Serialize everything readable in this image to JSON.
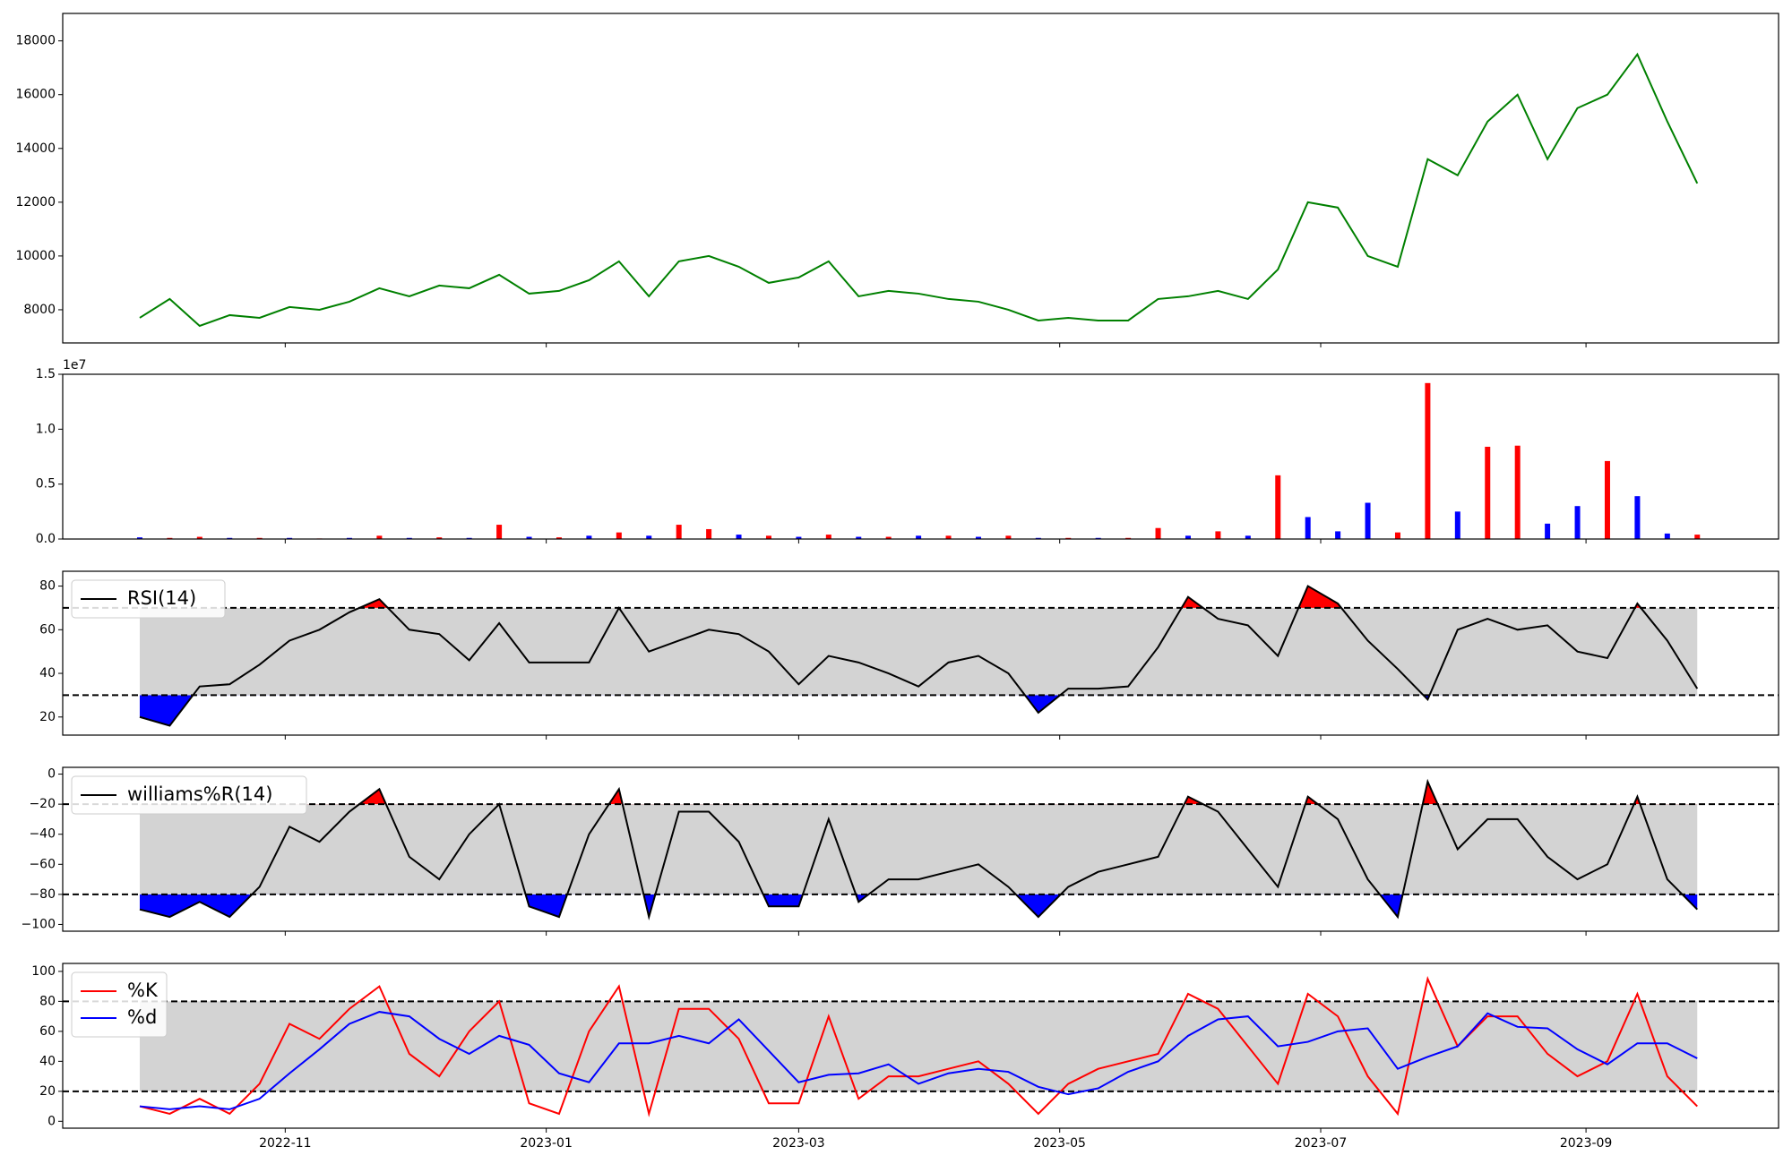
{
  "chart_data": [
    {
      "type": "line",
      "x": [
        19263,
        19270,
        19277,
        19284,
        19291,
        19298,
        19305,
        19312,
        19319,
        19326,
        19333,
        19340,
        19347,
        19354,
        19361,
        19368,
        19375,
        19382,
        19389,
        19396,
        19403,
        19410,
        19417,
        19424,
        19431,
        19438,
        19445,
        19452,
        19459,
        19466,
        19473,
        19480,
        19487,
        19494,
        19501,
        19508,
        19515,
        19522,
        19529,
        19536,
        19543,
        19550,
        19557,
        19564,
        19571,
        19578,
        19585,
        19592,
        19599,
        19606,
        19613,
        19620,
        19627
      ],
      "xlim": [
        19245,
        19646
      ],
      "ylim": [
        6766,
        19021
      ],
      "yticks": [
        8000,
        10000,
        12000,
        14000,
        16000,
        18000
      ],
      "series": [
        {
          "color": "green",
          "values": [
            7700,
            8400,
            7400,
            7800,
            7700,
            8100,
            8000,
            8300,
            8800,
            8500,
            8900,
            8800,
            9300,
            8600,
            8700,
            9100,
            9800,
            8500,
            9800,
            10000,
            9600,
            9000,
            9200,
            9800,
            8500,
            8700,
            8600,
            8400,
            8300,
            8000,
            7600,
            7700,
            7600,
            7600,
            8400,
            8500,
            8700,
            8400,
            9500,
            12000,
            11800,
            10000,
            9600,
            13600,
            13000,
            15000,
            16000,
            13600,
            15500,
            16000,
            17500,
            15000,
            12700
          ]
        }
      ]
    },
    {
      "type": "bar",
      "x": [
        19263,
        19270,
        19277,
        19284,
        19291,
        19298,
        19305,
        19312,
        19319,
        19326,
        19333,
        19340,
        19347,
        19354,
        19361,
        19368,
        19375,
        19382,
        19389,
        19396,
        19403,
        19410,
        19417,
        19424,
        19431,
        19438,
        19445,
        19452,
        19459,
        19466,
        19473,
        19480,
        19487,
        19494,
        19501,
        19508,
        19515,
        19522,
        19529,
        19536,
        19543,
        19550,
        19557,
        19564,
        19571,
        19578,
        19585,
        19592,
        19599,
        19606,
        19613,
        19620,
        19627
      ],
      "xlim": [
        19245,
        19646
      ],
      "ylim": [
        0,
        15000000
      ],
      "y_offset_label": "1e7",
      "yticks": [
        {
          "value": 0,
          "label": "0.0"
        },
        {
          "value": 5000000,
          "label": "0.5"
        },
        {
          "value": 10000000,
          "label": "1.0"
        },
        {
          "value": 15000000,
          "label": "1.5"
        }
      ],
      "values": [
        150000,
        100000,
        200000,
        100000,
        100000,
        100000,
        50000,
        100000,
        300000,
        100000,
        150000,
        100000,
        1300000,
        200000,
        150000,
        300000,
        600000,
        300000,
        1300000,
        900000,
        400000,
        300000,
        200000,
        400000,
        200000,
        200000,
        300000,
        300000,
        200000,
        300000,
        100000,
        100000,
        100000,
        100000,
        1000000,
        300000,
        700000,
        300000,
        5800000,
        2000000,
        700000,
        3300000,
        600000,
        14200000,
        2500000,
        8400000,
        8500000,
        1400000,
        3000000,
        7100000,
        3900000,
        500000,
        400000
      ],
      "colors": [
        "blue",
        "red",
        "red",
        "blue",
        "red",
        "blue",
        "red",
        "blue",
        "red",
        "blue",
        "red",
        "blue",
        "red",
        "blue",
        "red",
        "blue",
        "red",
        "blue",
        "red",
        "red",
        "blue",
        "red",
        "blue",
        "red",
        "blue",
        "red",
        "blue",
        "red",
        "blue",
        "red",
        "blue",
        "red",
        "blue",
        "red",
        "red",
        "blue",
        "red",
        "blue",
        "red",
        "blue",
        "blue",
        "blue",
        "red",
        "red",
        "blue",
        "red",
        "red",
        "blue",
        "blue",
        "red",
        "blue",
        "blue",
        "red"
      ]
    },
    {
      "type": "oscillator",
      "x": [
        19263,
        19270,
        19277,
        19284,
        19291,
        19298,
        19305,
        19312,
        19319,
        19326,
        19333,
        19340,
        19347,
        19354,
        19361,
        19368,
        19375,
        19382,
        19389,
        19396,
        19403,
        19410,
        19417,
        19424,
        19431,
        19438,
        19445,
        19452,
        19459,
        19466,
        19473,
        19480,
        19487,
        19494,
        19501,
        19508,
        19515,
        19522,
        19529,
        19536,
        19543,
        19550,
        19557,
        19564,
        19571,
        19578,
        19585,
        19592,
        19599,
        19606,
        19613,
        19620,
        19627
      ],
      "xlim": [
        19245,
        19646
      ],
      "ylim": [
        11.7,
        86.8
      ],
      "yticks": [
        20,
        40,
        60,
        80
      ],
      "bands": [
        30,
        70
      ],
      "band_color": "lightgray",
      "overbought_color": "red",
      "oversold_color": "blue",
      "legend": "upper left",
      "series": [
        {
          "name": "RSI(14)",
          "color": "black",
          "values": [
            20,
            16,
            34,
            35,
            44,
            55,
            60,
            68,
            74,
            60,
            58,
            46,
            63,
            45,
            45,
            45,
            70,
            50,
            55,
            60,
            58,
            50,
            35,
            48,
            45,
            40,
            34,
            45,
            48,
            40,
            22,
            33,
            33,
            34,
            52,
            75,
            65,
            62,
            48,
            80,
            72,
            55,
            42,
            28,
            60,
            65,
            60,
            62,
            50,
            47,
            72,
            55,
            33
          ]
        }
      ]
    },
    {
      "type": "oscillator",
      "x": [
        19263,
        19270,
        19277,
        19284,
        19291,
        19298,
        19305,
        19312,
        19319,
        19326,
        19333,
        19340,
        19347,
        19354,
        19361,
        19368,
        19375,
        19382,
        19389,
        19396,
        19403,
        19410,
        19417,
        19424,
        19431,
        19438,
        19445,
        19452,
        19459,
        19466,
        19473,
        19480,
        19487,
        19494,
        19501,
        19508,
        19515,
        19522,
        19529,
        19536,
        19543,
        19550,
        19557,
        19564,
        19571,
        19578,
        19585,
        19592,
        19599,
        19606,
        19613,
        19620,
        19627
      ],
      "xlim": [
        19245,
        19646
      ],
      "ylim": [
        -104.5,
        4.5
      ],
      "yticks": [
        {
          "value": -100,
          "label": "−100"
        },
        {
          "value": -80,
          "label": "−80"
        },
        {
          "value": -60,
          "label": "−60"
        },
        {
          "value": -40,
          "label": "−40"
        },
        {
          "value": -20,
          "label": "−20"
        },
        0
      ],
      "bands": [
        -80,
        -20
      ],
      "band_color": "lightgray",
      "overbought_color": "red",
      "oversold_color": "blue",
      "legend": "upper left",
      "series": [
        {
          "name": "williams%R(14)",
          "color": "black",
          "values": [
            -90,
            -95,
            -85,
            -95,
            -75,
            -35,
            -45,
            -25,
            -10,
            -55,
            -70,
            -40,
            -20,
            -88,
            -95,
            -40,
            -10,
            -95,
            -25,
            -25,
            -45,
            -88,
            -88,
            -30,
            -85,
            -70,
            -70,
            -65,
            -60,
            -75,
            -95,
            -75,
            -65,
            -60,
            -55,
            -15,
            -25,
            -50,
            -75,
            -15,
            -30,
            -70,
            -95,
            -5,
            -50,
            -30,
            -30,
            -55,
            -70,
            -60,
            -15,
            -70,
            -90
          ]
        }
      ]
    },
    {
      "type": "oscillator",
      "x": [
        19263,
        19270,
        19277,
        19284,
        19291,
        19298,
        19305,
        19312,
        19319,
        19326,
        19333,
        19340,
        19347,
        19354,
        19361,
        19368,
        19375,
        19382,
        19389,
        19396,
        19403,
        19410,
        19417,
        19424,
        19431,
        19438,
        19445,
        19452,
        19459,
        19466,
        19473,
        19480,
        19487,
        19494,
        19501,
        19508,
        19515,
        19522,
        19529,
        19536,
        19543,
        19550,
        19557,
        19564,
        19571,
        19578,
        19585,
        19592,
        19599,
        19606,
        19613,
        19620,
        19627
      ],
      "xlim": [
        19245,
        19646
      ],
      "ylim": [
        -4.6,
        105.3
      ],
      "yticks": [
        0,
        20,
        40,
        60,
        80,
        100
      ],
      "xticks": [
        {
          "value": 19297,
          "label": "2022-11"
        },
        {
          "value": 19358,
          "label": "2023-01"
        },
        {
          "value": 19417,
          "label": "2023-03"
        },
        {
          "value": 19478,
          "label": "2023-05"
        },
        {
          "value": 19539,
          "label": "2023-07"
        },
        {
          "value": 19601,
          "label": "2023-09"
        }
      ],
      "bands": [
        20,
        80
      ],
      "band_color": "lightgray",
      "legend": "upper left",
      "series": [
        {
          "name": "%K",
          "color": "red",
          "values": [
            10,
            5,
            15,
            5,
            25,
            65,
            55,
            75,
            90,
            45,
            30,
            60,
            80,
            12,
            5,
            60,
            90,
            5,
            75,
            75,
            55,
            12,
            12,
            70,
            15,
            30,
            30,
            35,
            40,
            25,
            5,
            25,
            35,
            40,
            45,
            85,
            75,
            50,
            25,
            85,
            70,
            30,
            5,
            95,
            50,
            70,
            70,
            45,
            30,
            40,
            85,
            30,
            10
          ]
        },
        {
          "name": "%d",
          "color": "blue",
          "values": [
            10,
            8,
            10,
            8,
            15,
            32,
            48,
            65,
            73,
            70,
            55,
            45,
            57,
            51,
            32,
            26,
            52,
            52,
            57,
            52,
            68,
            47,
            26,
            31,
            32,
            38,
            25,
            32,
            35,
            33,
            23,
            18,
            22,
            33,
            40,
            57,
            68,
            70,
            50,
            53,
            60,
            62,
            35,
            43,
            50,
            72,
            63,
            62,
            48,
            38,
            52,
            52,
            42
          ]
        }
      ]
    }
  ]
}
